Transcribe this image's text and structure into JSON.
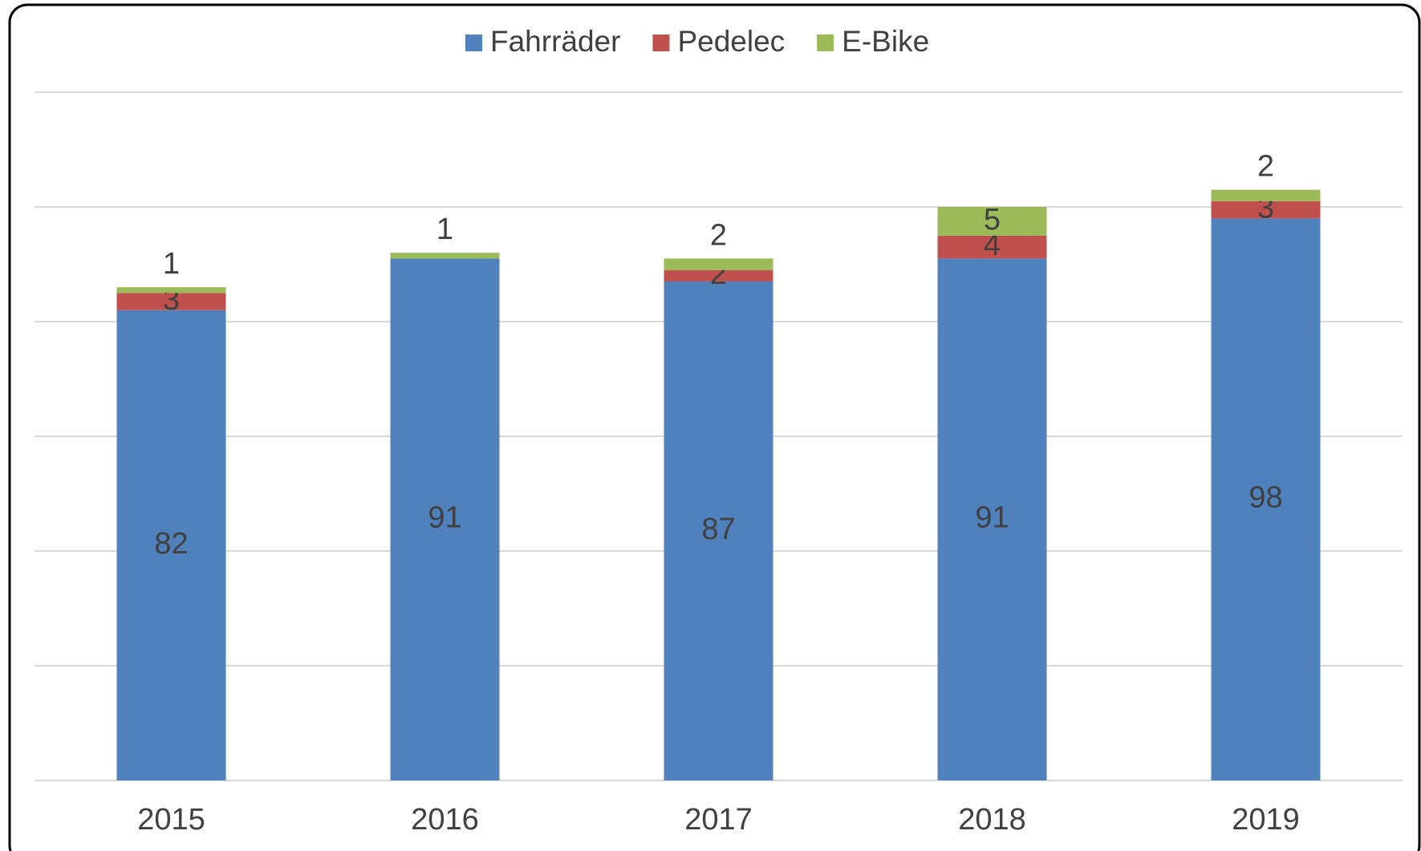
{
  "chart_data": {
    "type": "stacked_bar",
    "categories": [
      "2015",
      "2016",
      "2017",
      "2018",
      "2019"
    ],
    "series": [
      {
        "name": "Fahrräder",
        "color": "#4f81bd",
        "values": [
          82,
          91,
          87,
          91,
          98
        ]
      },
      {
        "name": "Pedelec",
        "color": "#c0504d",
        "values": [
          3,
          null,
          2,
          4,
          3
        ]
      },
      {
        "name": "E-Bike",
        "color": "#9bbb59",
        "values": [
          1,
          1,
          2,
          5,
          2
        ]
      }
    ],
    "ylim": [
      0,
      120
    ],
    "yticks": [
      0,
      20,
      40,
      60,
      80,
      100,
      120
    ],
    "grid": true,
    "legend": "top"
  }
}
